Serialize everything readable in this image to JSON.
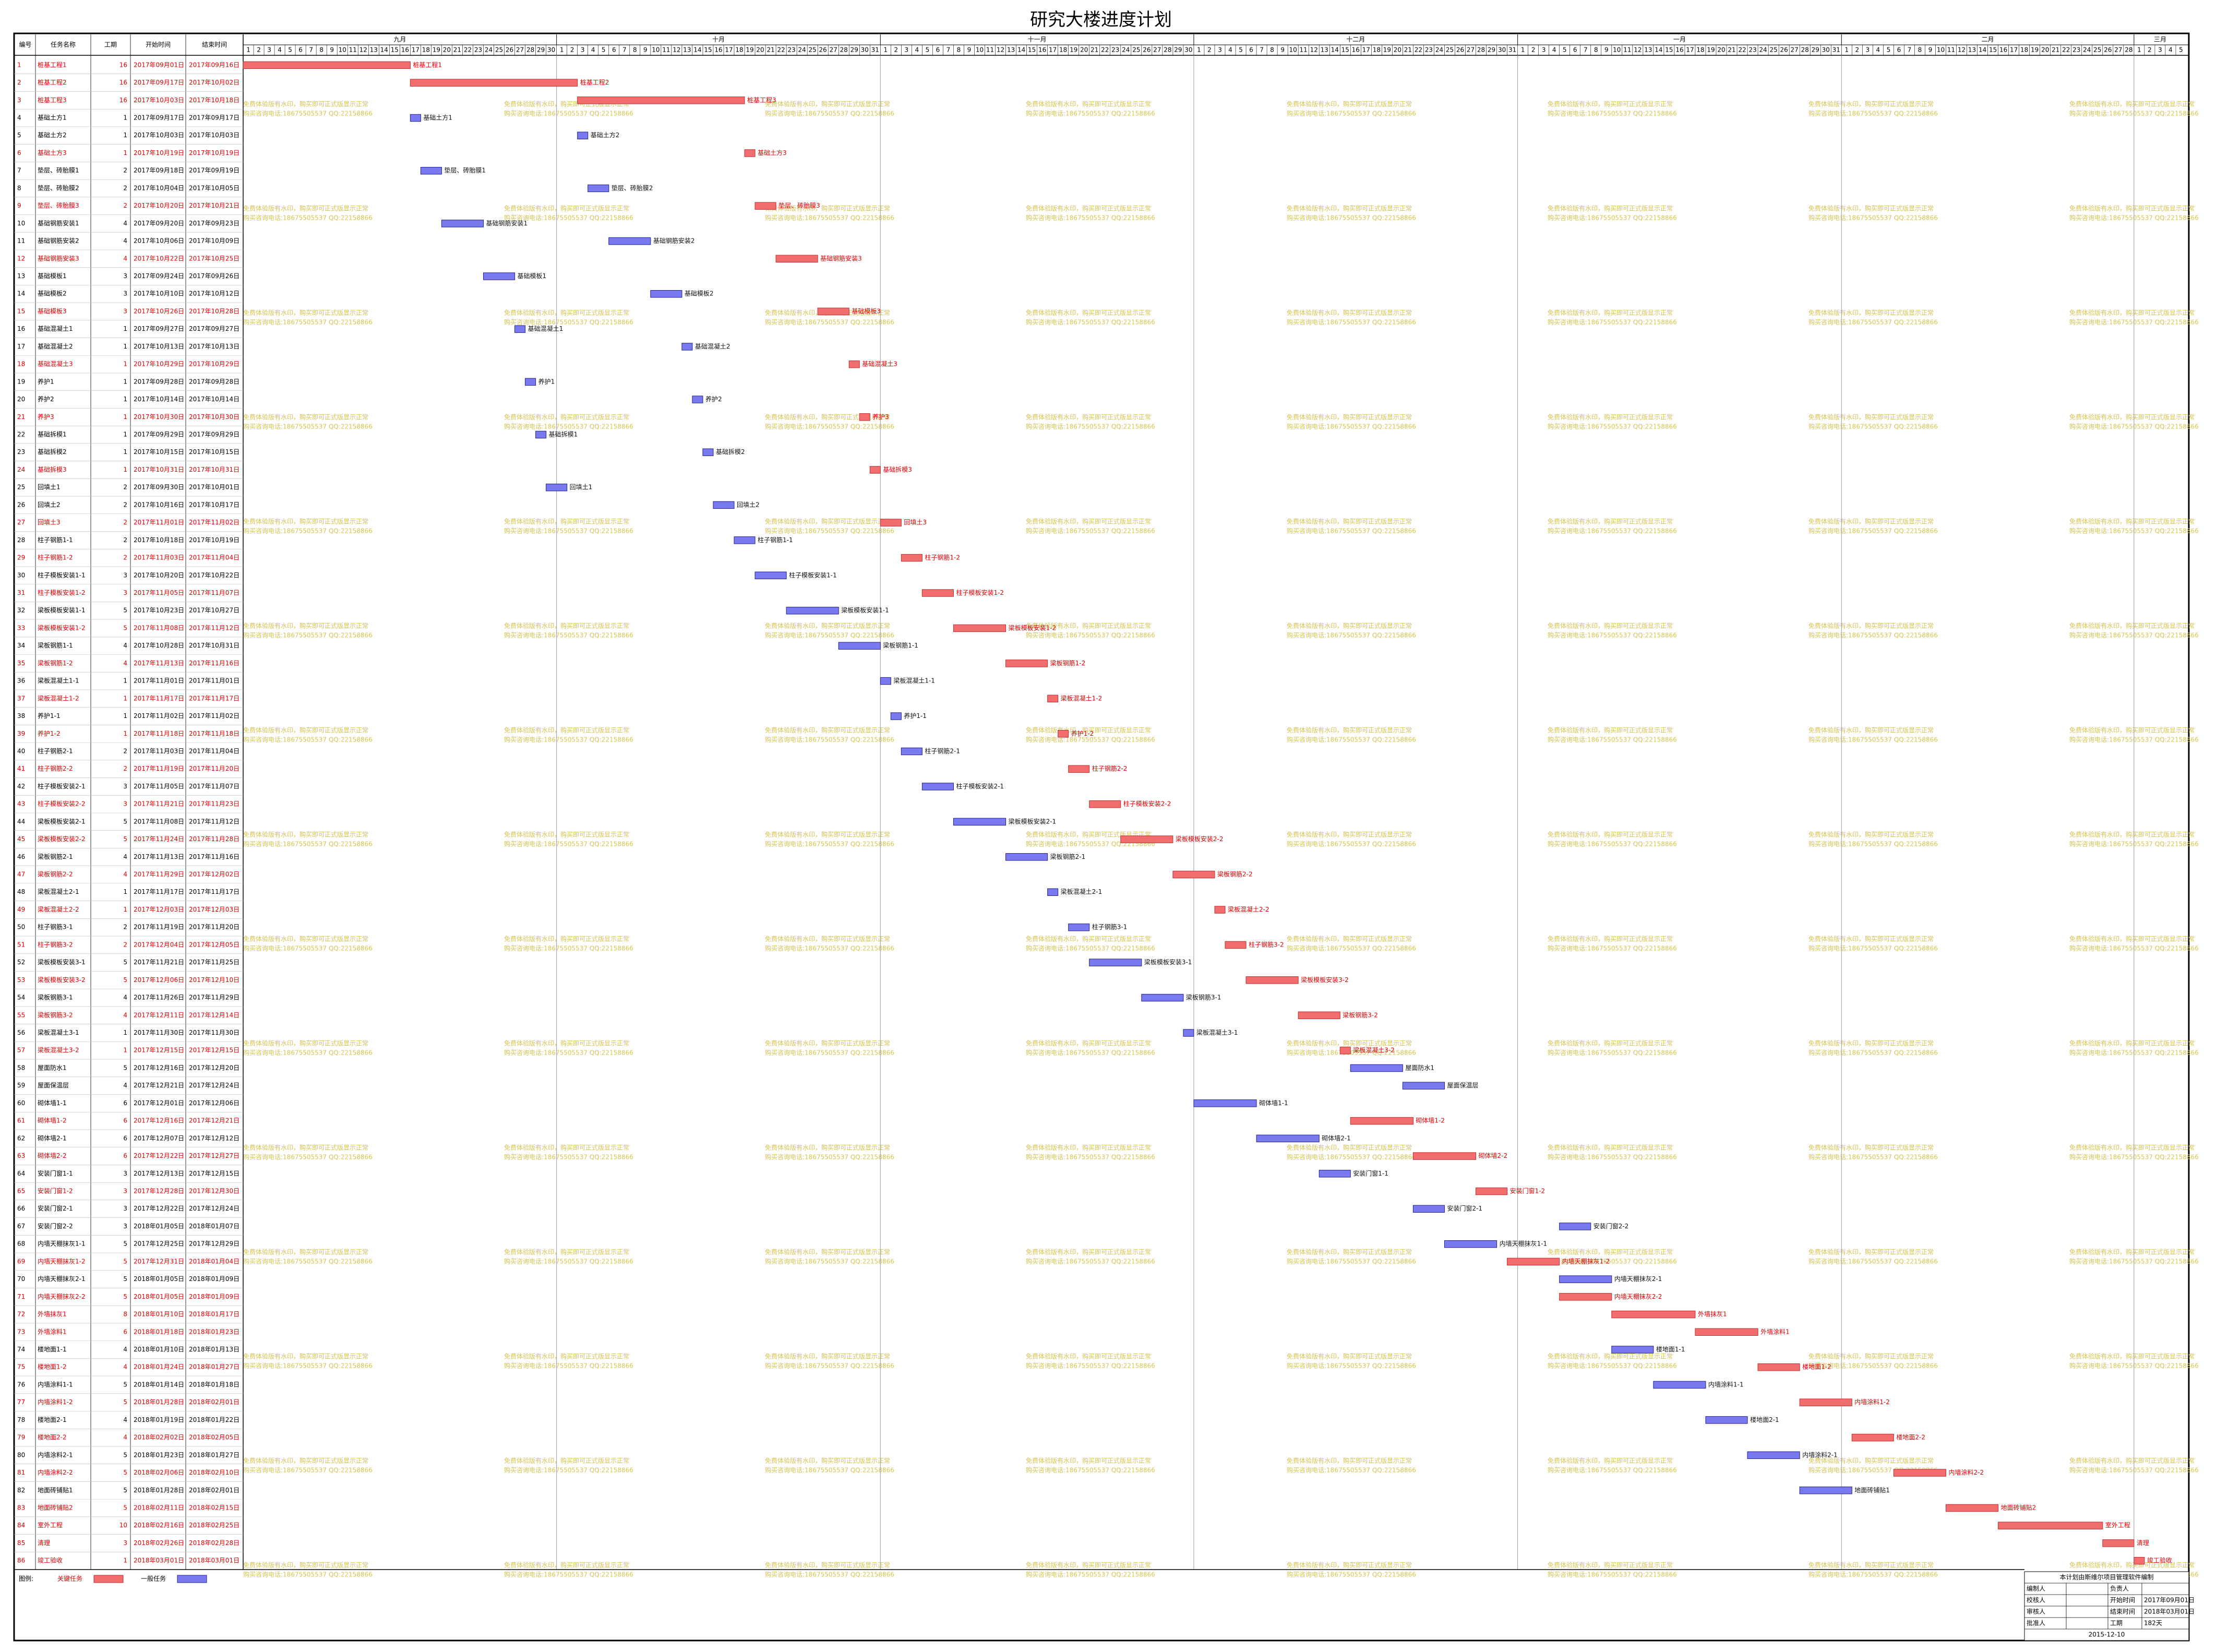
{
  "chart_data": {
    "type": "gantt",
    "title": "研究大楼进度计划",
    "columns": [
      "编号",
      "任务名称",
      "工期",
      "开始时间",
      "结束时间"
    ],
    "xlim": [
      "2017年09月01日",
      "2018年03月05日"
    ],
    "months": [
      {
        "name": "九月",
        "days": [
          1,
          2,
          3,
          4,
          5,
          6,
          7,
          8,
          9,
          10,
          11,
          12,
          13,
          14,
          15,
          16,
          17,
          18,
          19,
          20,
          21,
          22,
          23,
          24,
          25,
          26,
          27,
          28,
          29,
          30
        ]
      },
      {
        "name": "十月",
        "days": [
          1,
          2,
          3,
          4,
          5,
          6,
          7,
          8,
          9,
          10,
          11,
          12,
          13,
          14,
          15,
          16,
          17,
          18,
          19,
          20,
          21,
          22,
          23,
          24,
          25,
          26,
          27,
          28,
          29,
          30,
          31
        ]
      },
      {
        "name": "十一月",
        "days": [
          1,
          2,
          3,
          4,
          5,
          6,
          7,
          8,
          9,
          10,
          11,
          12,
          13,
          14,
          15,
          16,
          17,
          18,
          19,
          20,
          21,
          22,
          23,
          24,
          25,
          26,
          27,
          28,
          29,
          30
        ]
      },
      {
        "name": "十二月",
        "days": [
          1,
          2,
          3,
          4,
          5,
          6,
          7,
          8,
          9,
          10,
          11,
          12,
          13,
          14,
          15,
          16,
          17,
          18,
          19,
          20,
          21,
          22,
          23,
          24,
          25,
          26,
          27,
          28,
          29,
          30,
          31
        ]
      },
      {
        "name": "一月",
        "days": [
          1,
          2,
          3,
          4,
          5,
          6,
          7,
          8,
          9,
          10,
          11,
          12,
          13,
          14,
          15,
          16,
          17,
          18,
          19,
          20,
          21,
          22,
          23,
          24,
          25,
          26,
          27,
          28,
          29,
          30,
          31
        ]
      },
      {
        "name": "二月",
        "days": [
          1,
          2,
          3,
          4,
          5,
          6,
          7,
          8,
          9,
          10,
          11,
          12,
          13,
          14,
          15,
          16,
          17,
          18,
          19,
          20,
          21,
          22,
          23,
          24,
          25,
          26,
          27,
          28
        ]
      },
      {
        "name": "三月",
        "days": [
          1,
          2,
          3,
          4,
          5
        ]
      }
    ],
    "colors": {
      "critical": "#f26d6d",
      "critical_edge": "#c03030",
      "normal": "#7a7af0",
      "normal_edge": "#22228a"
    },
    "tasks": [
      {
        "id": 1,
        "name": "桩基工程1",
        "duration": 16,
        "start": "2017年09月01日",
        "end": "2017年09月16日",
        "critical": true
      },
      {
        "id": 2,
        "name": "桩基工程2",
        "duration": 16,
        "start": "2017年09月17日",
        "end": "2017年10月02日",
        "critical": true
      },
      {
        "id": 3,
        "name": "桩基工程3",
        "duration": 16,
        "start": "2017年10月03日",
        "end": "2017年10月18日",
        "critical": true
      },
      {
        "id": 4,
        "name": "基础土方1",
        "duration": 1,
        "start": "2017年09月17日",
        "end": "2017年09月17日",
        "critical": false
      },
      {
        "id": 5,
        "name": "基础土方2",
        "duration": 1,
        "start": "2017年10月03日",
        "end": "2017年10月03日",
        "critical": false
      },
      {
        "id": 6,
        "name": "基础土方3",
        "duration": 1,
        "start": "2017年10月19日",
        "end": "2017年10月19日",
        "critical": true
      },
      {
        "id": 7,
        "name": "垫层、砖胎膜1",
        "duration": 2,
        "start": "2017年09月18日",
        "end": "2017年09月19日",
        "critical": false
      },
      {
        "id": 8,
        "name": "垫层、砖胎膜2",
        "duration": 2,
        "start": "2017年10月04日",
        "end": "2017年10月05日",
        "critical": false
      },
      {
        "id": 9,
        "name": "垫层、砖胎膜3",
        "duration": 2,
        "start": "2017年10月20日",
        "end": "2017年10月21日",
        "critical": true
      },
      {
        "id": 10,
        "name": "基础钢筋安装1",
        "duration": 4,
        "start": "2017年09月20日",
        "end": "2017年09月23日",
        "critical": false
      },
      {
        "id": 11,
        "name": "基础钢筋安装2",
        "duration": 4,
        "start": "2017年10月06日",
        "end": "2017年10月09日",
        "critical": false
      },
      {
        "id": 12,
        "name": "基础钢筋安装3",
        "duration": 4,
        "start": "2017年10月22日",
        "end": "2017年10月25日",
        "critical": true
      },
      {
        "id": 13,
        "name": "基础模板1",
        "duration": 3,
        "start": "2017年09月24日",
        "end": "2017年09月26日",
        "critical": false
      },
      {
        "id": 14,
        "name": "基础模板2",
        "duration": 3,
        "start": "2017年10月10日",
        "end": "2017年10月12日",
        "critical": false
      },
      {
        "id": 15,
        "name": "基础模板3",
        "duration": 3,
        "start": "2017年10月26日",
        "end": "2017年10月28日",
        "critical": true
      },
      {
        "id": 16,
        "name": "基础混凝土1",
        "duration": 1,
        "start": "2017年09月27日",
        "end": "2017年09月27日",
        "critical": false
      },
      {
        "id": 17,
        "name": "基础混凝土2",
        "duration": 1,
        "start": "2017年10月13日",
        "end": "2017年10月13日",
        "critical": false
      },
      {
        "id": 18,
        "name": "基础混凝土3",
        "duration": 1,
        "start": "2017年10月29日",
        "end": "2017年10月29日",
        "critical": true
      },
      {
        "id": 19,
        "name": "养护1",
        "duration": 1,
        "start": "2017年09月28日",
        "end": "2017年09月28日",
        "critical": false
      },
      {
        "id": 20,
        "name": "养护2",
        "duration": 1,
        "start": "2017年10月14日",
        "end": "2017年10月14日",
        "critical": false
      },
      {
        "id": 21,
        "name": "养护3",
        "duration": 1,
        "start": "2017年10月30日",
        "end": "2017年10月30日",
        "critical": true
      },
      {
        "id": 22,
        "name": "基础拆模1",
        "duration": 1,
        "start": "2017年09月29日",
        "end": "2017年09月29日",
        "critical": false
      },
      {
        "id": 23,
        "name": "基础拆模2",
        "duration": 1,
        "start": "2017年10月15日",
        "end": "2017年10月15日",
        "critical": false
      },
      {
        "id": 24,
        "name": "基础拆模3",
        "duration": 1,
        "start": "2017年10月31日",
        "end": "2017年10月31日",
        "critical": true
      },
      {
        "id": 25,
        "name": "回填土1",
        "duration": 2,
        "start": "2017年09月30日",
        "end": "2017年10月01日",
        "critical": false
      },
      {
        "id": 26,
        "name": "回填土2",
        "duration": 2,
        "start": "2017年10月16日",
        "end": "2017年10月17日",
        "critical": false
      },
      {
        "id": 27,
        "name": "回填土3",
        "duration": 2,
        "start": "2017年11月01日",
        "end": "2017年11月02日",
        "critical": true
      },
      {
        "id": 28,
        "name": "柱子钢筋1-1",
        "duration": 2,
        "start": "2017年10月18日",
        "end": "2017年10月19日",
        "critical": false
      },
      {
        "id": 29,
        "name": "柱子钢筋1-2",
        "duration": 2,
        "start": "2017年11月03日",
        "end": "2017年11月04日",
        "critical": true
      },
      {
        "id": 30,
        "name": "柱子模板安装1-1",
        "duration": 3,
        "start": "2017年10月20日",
        "end": "2017年10月22日",
        "critical": false
      },
      {
        "id": 31,
        "name": "柱子模板安装1-2",
        "duration": 3,
        "start": "2017年11月05日",
        "end": "2017年11月07日",
        "critical": true
      },
      {
        "id": 32,
        "name": "梁板模板安装1-1",
        "duration": 5,
        "start": "2017年10月23日",
        "end": "2017年10月27日",
        "critical": false
      },
      {
        "id": 33,
        "name": "梁板模板安装1-2",
        "duration": 5,
        "start": "2017年11月08日",
        "end": "2017年11月12日",
        "critical": true
      },
      {
        "id": 34,
        "name": "梁板钢筋1-1",
        "duration": 4,
        "start": "2017年10月28日",
        "end": "2017年10月31日",
        "critical": false
      },
      {
        "id": 35,
        "name": "梁板钢筋1-2",
        "duration": 4,
        "start": "2017年11月13日",
        "end": "2017年11月16日",
        "critical": true
      },
      {
        "id": 36,
        "name": "梁板混凝土1-1",
        "duration": 1,
        "start": "2017年11月01日",
        "end": "2017年11月01日",
        "critical": false
      },
      {
        "id": 37,
        "name": "梁板混凝土1-2",
        "duration": 1,
        "start": "2017年11月17日",
        "end": "2017年11月17日",
        "critical": true
      },
      {
        "id": 38,
        "name": "养护1-1",
        "duration": 1,
        "start": "2017年11月02日",
        "end": "2017年11月02日",
        "critical": false
      },
      {
        "id": 39,
        "name": "养护1-2",
        "duration": 1,
        "start": "2017年11月18日",
        "end": "2017年11月18日",
        "critical": true
      },
      {
        "id": 40,
        "name": "柱子钢筋2-1",
        "duration": 2,
        "start": "2017年11月03日",
        "end": "2017年11月04日",
        "critical": false
      },
      {
        "id": 41,
        "name": "柱子钢筋2-2",
        "duration": 2,
        "start": "2017年11月19日",
        "end": "2017年11月20日",
        "critical": true
      },
      {
        "id": 42,
        "name": "柱子模板安装2-1",
        "duration": 3,
        "start": "2017年11月05日",
        "end": "2017年11月07日",
        "critical": false
      },
      {
        "id": 43,
        "name": "柱子模板安装2-2",
        "duration": 3,
        "start": "2017年11月21日",
        "end": "2017年11月23日",
        "critical": true
      },
      {
        "id": 44,
        "name": "梁板模板安装2-1",
        "duration": 5,
        "start": "2017年11月08日",
        "end": "2017年11月12日",
        "critical": false
      },
      {
        "id": 45,
        "name": "梁板模板安装2-2",
        "duration": 5,
        "start": "2017年11月24日",
        "end": "2017年11月28日",
        "critical": true
      },
      {
        "id": 46,
        "name": "梁板钢筋2-1",
        "duration": 4,
        "start": "2017年11月13日",
        "end": "2017年11月16日",
        "critical": false
      },
      {
        "id": 47,
        "name": "梁板钢筋2-2",
        "duration": 4,
        "start": "2017年11月29日",
        "end": "2017年12月02日",
        "critical": true
      },
      {
        "id": 48,
        "name": "梁板混凝土2-1",
        "duration": 1,
        "start": "2017年11月17日",
        "end": "2017年11月17日",
        "critical": false
      },
      {
        "id": 49,
        "name": "梁板混凝土2-2",
        "duration": 1,
        "start": "2017年12月03日",
        "end": "2017年12月03日",
        "critical": true
      },
      {
        "id": 50,
        "name": "柱子钢筋3-1",
        "duration": 2,
        "start": "2017年11月19日",
        "end": "2017年11月20日",
        "critical": false
      },
      {
        "id": 51,
        "name": "柱子钢筋3-2",
        "duration": 2,
        "start": "2017年12月04日",
        "end": "2017年12月05日",
        "critical": true
      },
      {
        "id": 52,
        "name": "梁板模板安装3-1",
        "duration": 5,
        "start": "2017年11月21日",
        "end": "2017年11月25日",
        "critical": false
      },
      {
        "id": 53,
        "name": "梁板模板安装3-2",
        "duration": 5,
        "start": "2017年12月06日",
        "end": "2017年12月10日",
        "critical": true
      },
      {
        "id": 54,
        "name": "梁板钢筋3-1",
        "duration": 4,
        "start": "2017年11月26日",
        "end": "2017年11月29日",
        "critical": false
      },
      {
        "id": 55,
        "name": "梁板钢筋3-2",
        "duration": 4,
        "start": "2017年12月11日",
        "end": "2017年12月14日",
        "critical": true
      },
      {
        "id": 56,
        "name": "梁板混凝土3-1",
        "duration": 1,
        "start": "2017年11月30日",
        "end": "2017年11月30日",
        "critical": false
      },
      {
        "id": 57,
        "name": "梁板混凝土3-2",
        "duration": 1,
        "start": "2017年12月15日",
        "end": "2017年12月15日",
        "critical": true
      },
      {
        "id": 58,
        "name": "屋面防水1",
        "duration": 5,
        "start": "2017年12月16日",
        "end": "2017年12月20日",
        "critical": false
      },
      {
        "id": 59,
        "name": "屋面保温层",
        "duration": 4,
        "start": "2017年12月21日",
        "end": "2017年12月24日",
        "critical": false
      },
      {
        "id": 60,
        "name": "砌体墙1-1",
        "duration": 6,
        "start": "2017年12月01日",
        "end": "2017年12月06日",
        "critical": false
      },
      {
        "id": 61,
        "name": "砌体墙1-2",
        "duration": 6,
        "start": "2017年12月16日",
        "end": "2017年12月21日",
        "critical": true
      },
      {
        "id": 62,
        "name": "砌体墙2-1",
        "duration": 6,
        "start": "2017年12月07日",
        "end": "2017年12月12日",
        "critical": false
      },
      {
        "id": 63,
        "name": "砌体墙2-2",
        "duration": 6,
        "start": "2017年12月22日",
        "end": "2017年12月27日",
        "critical": true
      },
      {
        "id": 64,
        "name": "安装门窗1-1",
        "duration": 3,
        "start": "2017年12月13日",
        "end": "2017年12月15日",
        "critical": false
      },
      {
        "id": 65,
        "name": "安装门窗1-2",
        "duration": 3,
        "start": "2017年12月28日",
        "end": "2017年12月30日",
        "critical": true
      },
      {
        "id": 66,
        "name": "安装门窗2-1",
        "duration": 3,
        "start": "2017年12月22日",
        "end": "2017年12月24日",
        "critical": false
      },
      {
        "id": 67,
        "name": "安装门窗2-2",
        "duration": 3,
        "start": "2018年01月05日",
        "end": "2018年01月07日",
        "critical": false
      },
      {
        "id": 68,
        "name": "内墙天棚抹灰1-1",
        "duration": 5,
        "start": "2017年12月25日",
        "end": "2017年12月29日",
        "critical": false
      },
      {
        "id": 69,
        "name": "内墙天棚抹灰1-2",
        "duration": 5,
        "start": "2017年12月31日",
        "end": "2018年01月04日",
        "critical": true
      },
      {
        "id": 70,
        "name": "内墙天棚抹灰2-1",
        "duration": 5,
        "start": "2018年01月05日",
        "end": "2018年01月09日",
        "critical": false
      },
      {
        "id": 71,
        "name": "内墙天棚抹灰2-2",
        "duration": 5,
        "start": "2018年01月05日",
        "end": "2018年01月09日",
        "critical": true
      },
      {
        "id": 72,
        "name": "外墙抹灰1",
        "duration": 8,
        "start": "2018年01月10日",
        "end": "2018年01月17日",
        "critical": true
      },
      {
        "id": 73,
        "name": "外墙涂料1",
        "duration": 6,
        "start": "2018年01月18日",
        "end": "2018年01月23日",
        "critical": true
      },
      {
        "id": 74,
        "name": "楼地面1-1",
        "duration": 4,
        "start": "2018年01月10日",
        "end": "2018年01月13日",
        "critical": false
      },
      {
        "id": 75,
        "name": "楼地面1-2",
        "duration": 4,
        "start": "2018年01月24日",
        "end": "2018年01月27日",
        "critical": true
      },
      {
        "id": 76,
        "name": "内墙涂料1-1",
        "duration": 5,
        "start": "2018年01月14日",
        "end": "2018年01月18日",
        "critical": false
      },
      {
        "id": 77,
        "name": "内墙涂料1-2",
        "duration": 5,
        "start": "2018年01月28日",
        "end": "2018年02月01日",
        "critical": true
      },
      {
        "id": 78,
        "name": "楼地面2-1",
        "duration": 4,
        "start": "2018年01月19日",
        "end": "2018年01月22日",
        "critical": false
      },
      {
        "id": 79,
        "name": "楼地面2-2",
        "duration": 4,
        "start": "2018年02月02日",
        "end": "2018年02月05日",
        "critical": true
      },
      {
        "id": 80,
        "name": "内墙涂料2-1",
        "duration": 5,
        "start": "2018年01月23日",
        "end": "2018年01月27日",
        "critical": false
      },
      {
        "id": 81,
        "name": "内墙涂料2-2",
        "duration": 5,
        "start": "2018年02月06日",
        "end": "2018年02月10日",
        "critical": true
      },
      {
        "id": 82,
        "name": "地面砖铺贴1",
        "duration": 5,
        "start": "2018年01月28日",
        "end": "2018年02月01日",
        "critical": false
      },
      {
        "id": 83,
        "name": "地面砖铺贴2",
        "duration": 5,
        "start": "2018年02月11日",
        "end": "2018年02月15日",
        "critical": true
      },
      {
        "id": 84,
        "name": "室外工程",
        "duration": 10,
        "start": "2018年02月16日",
        "end": "2018年02月25日",
        "critical": true
      },
      {
        "id": 85,
        "name": "清理",
        "duration": 3,
        "start": "2018年02月26日",
        "end": "2018年02月28日",
        "critical": true
      },
      {
        "id": 86,
        "name": "竣工验收",
        "duration": 1,
        "start": "2018年03月01日",
        "end": "2018年03月01日",
        "critical": true
      }
    ],
    "legend": {
      "label": "图例:",
      "critical": "关键任务",
      "normal": "一般任务"
    },
    "watermark": [
      "免费体验版有水印，购买即可正式版显示正常",
      "购买咨询电话:18675505537 QQ:22158866"
    ],
    "info": {
      "note": "本计划由斯维尔项目管理软件编制",
      "rows": [
        [
          "编制人",
          "负责人"
        ],
        [
          "校核人",
          "开始时间",
          "2017年09月01日"
        ],
        [
          "审核人",
          "结束时间",
          "2018年03月01日"
        ],
        [
          "批准人",
          "工期",
          "182天"
        ]
      ],
      "date": "2015-12-10"
    }
  }
}
